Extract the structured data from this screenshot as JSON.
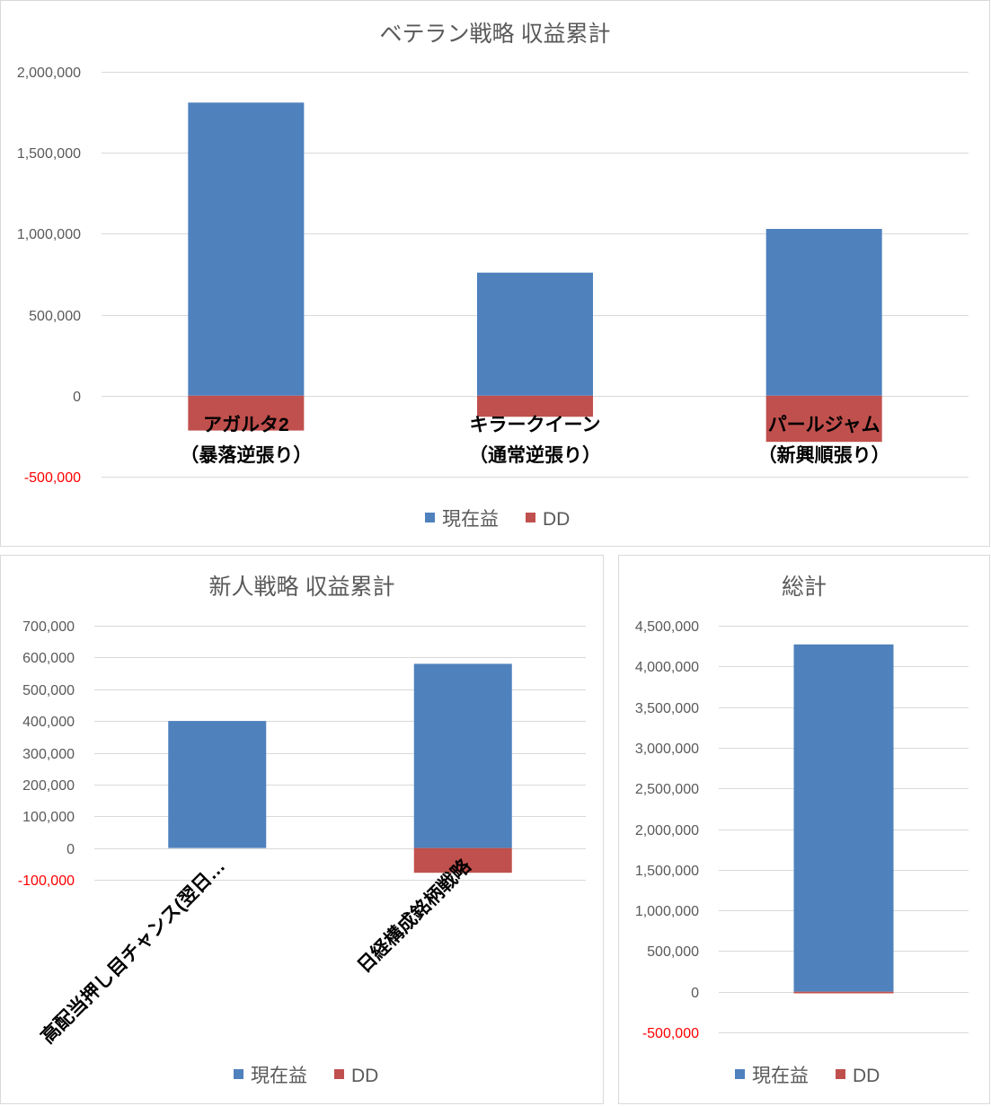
{
  "colors": {
    "text": "#595959",
    "negative_tick": "#FF0000",
    "category_label": "#000000",
    "grid": "#D9D9D9",
    "panel_border": "#D9D9D9"
  },
  "chart_data": [
    {
      "type": "bar",
      "stacked": true,
      "title": "ベテラン戦略 収益累計",
      "categories": [
        "アガルタ2\n（暴落逆張り）",
        "キラークイーン\n（通常逆張り）",
        "パールジャム\n（新興順張り）"
      ],
      "series": [
        {
          "name": "現在益",
          "color": "#4F81BD",
          "values": [
            1810000,
            760000,
            1030000
          ]
        },
        {
          "name": "DD",
          "color": "#C0504D",
          "values": [
            -215000,
            -130000,
            -285000
          ]
        }
      ],
      "ylim": [
        -500000,
        2000000
      ],
      "yticks": [
        -500000,
        0,
        500000,
        1000000,
        1500000,
        2000000
      ],
      "ytick_labels": [
        "-500,000",
        "0",
        "500,000",
        "1,000,000",
        "1,500,000",
        "2,000,000"
      ],
      "grid": "horizontal",
      "legend": "bottom"
    },
    {
      "type": "bar",
      "stacked": true,
      "title": "新人戦略 収益累計",
      "categories": [
        "高配当押し目チャンス(翌日…",
        "日経構成銘柄戦略"
      ],
      "series": [
        {
          "name": "現在益",
          "color": "#4F81BD",
          "values": [
            400000,
            580000
          ]
        },
        {
          "name": "DD",
          "color": "#C0504D",
          "values": [
            0,
            -78000
          ]
        }
      ],
      "ylim": [
        -100000,
        700000
      ],
      "yticks": [
        -100000,
        0,
        100000,
        200000,
        300000,
        400000,
        500000,
        600000,
        700000
      ],
      "ytick_labels": [
        "-100,000",
        "0",
        "100,000",
        "200,000",
        "300,000",
        "400,000",
        "500,000",
        "600,000",
        "700,000"
      ],
      "grid": "horizontal",
      "legend": "bottom"
    },
    {
      "type": "bar",
      "stacked": true,
      "title": "総計",
      "series": [
        {
          "name": "現在益",
          "color": "#4F81BD",
          "values": [
            4270000
          ]
        },
        {
          "name": "DD",
          "color": "#C0504D",
          "values": [
            -20000
          ]
        }
      ],
      "ylim": [
        -500000,
        4500000
      ],
      "yticks": [
        -500000,
        0,
        500000,
        1000000,
        1500000,
        2000000,
        2500000,
        3000000,
        3500000,
        4000000,
        4500000
      ],
      "ytick_labels": [
        "-500,000",
        "0",
        "500,000",
        "1,000,000",
        "1,500,000",
        "2,000,000",
        "2,500,000",
        "3,000,000",
        "3,500,000",
        "4,000,000",
        "4,500,000"
      ],
      "grid": "horizontal",
      "legend": "bottom"
    }
  ]
}
